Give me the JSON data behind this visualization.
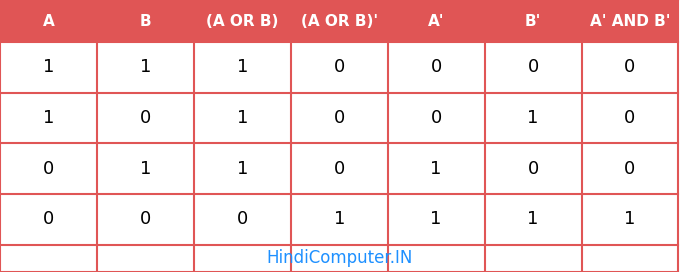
{
  "headers": [
    "A",
    "B",
    "(A OR B)",
    "(A OR B)'",
    "A'",
    "B'",
    "A' AND B'"
  ],
  "rows": [
    [
      "1",
      "1",
      "1",
      "0",
      "0",
      "0",
      "0"
    ],
    [
      "1",
      "0",
      "1",
      "0",
      "0",
      "1",
      "0"
    ],
    [
      "0",
      "1",
      "1",
      "0",
      "1",
      "0",
      "0"
    ],
    [
      "0",
      "0",
      "0",
      "1",
      "1",
      "1",
      "1"
    ]
  ],
  "header_bg": "#e05555",
  "header_text_color": "#ffffff",
  "row_bg": "#ffffff",
  "row_text_color": "#000000",
  "footer_text": "HindiComputer.IN",
  "footer_text_color": "#1e90ff",
  "footer_bg": "#ffffff",
  "border_color": "#e05555",
  "fig_bg": "#ffffff",
  "header_fontsize": 11,
  "cell_fontsize": 13,
  "footer_fontsize": 12
}
